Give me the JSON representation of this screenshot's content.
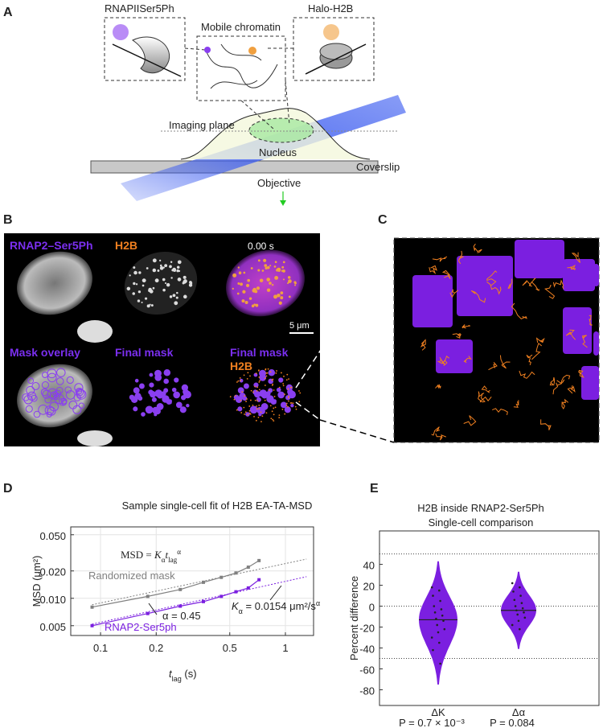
{
  "panel_labels": [
    "A",
    "B",
    "C",
    "D",
    "E"
  ],
  "diagram": {
    "left_inset": "RNAPIISer5Ph",
    "middle_inset": "Mobile chromatin",
    "right_inset": "Halo-H2B",
    "imaging_plane": "Imaging plane",
    "nucleus": "Nucleus",
    "coverslip": "Coverslip",
    "objective": "Objective"
  },
  "images": {
    "top_row": [
      "RNAP2–Ser5Ph",
      "H2B",
      "0.00 s"
    ],
    "scale_bar": "5 μm",
    "bottom_row": [
      "Mask overlay",
      "Final mask",
      "Final mask"
    ],
    "bottom_third_second_line": "H2B"
  },
  "chart_data": [
    {
      "type": "line",
      "title": "Sample single-cell fit of H2B EA-TA-MSD",
      "ylabel": "MSD (μm²)",
      "xlabel": {
        "t": "t",
        "sub": "lag",
        "rest": " (s)"
      },
      "xscale": "log",
      "yscale": "log",
      "grid": true,
      "xlim": [
        0.069,
        1.42
      ],
      "ylim": [
        0.0039,
        0.061
      ],
      "xticks": [
        0.1,
        0.2,
        0.5,
        1
      ],
      "yticks": [
        0.005,
        {
          "value": 0.01,
          "label": "0.010"
        },
        {
          "value": 0.02,
          "label": "0.020"
        },
        {
          "value": 0.05,
          "label": "0.050"
        }
      ],
      "series": [
        {
          "name": "Randomized mask",
          "color": "#808080",
          "x": [
            0.09,
            0.18,
            0.27,
            0.36,
            0.45,
            0.54,
            0.63,
            0.72
          ],
          "values": [
            0.008,
            0.0105,
            0.0125,
            0.015,
            0.017,
            0.019,
            0.022,
            0.026
          ]
        },
        {
          "name": "RNAP2-Ser5ph",
          "color": "#7b1fe0",
          "x": [
            0.09,
            0.18,
            0.27,
            0.36,
            0.45,
            0.54,
            0.63,
            0.72
          ],
          "values": [
            0.005,
            0.0068,
            0.0082,
            0.0092,
            0.0105,
            0.0118,
            0.013,
            0.016
          ]
        },
        {
          "color": "#808080",
          "dashed": true,
          "x": [
            0.09,
            1.3
          ],
          "values": [
            0.0085,
            0.027
          ]
        },
        {
          "color": "#7b1fe0",
          "dashed": true,
          "x": [
            0.09,
            1.3
          ],
          "values": [
            0.0052,
            0.0173
          ]
        }
      ],
      "formula": {
        "lhs": "MSD = ",
        "k": "K",
        "k_sub": "α",
        "t": "t",
        "t_sub": "lag",
        "t_sup": "α"
      },
      "alpha_label": "α = 0.45",
      "k_label": {
        "k": "K",
        "sub": "α",
        "rest": " = 0.0154 μm²/s",
        "sup": "α"
      }
    },
    {
      "type": "violin",
      "title": [
        "H2B inside RNAP2-Ser5Ph",
        "Single-cell comparison"
      ],
      "ylabel": "Percent difference",
      "categories": [
        "ΔK",
        "Δα"
      ],
      "p_labels": [
        "P = 0.7 × 10⁻³",
        "P = 0.084"
      ],
      "color": "#7b1fe0",
      "ylim": [
        -95,
        72
      ],
      "yticks": [
        -80,
        -60,
        -40,
        -20,
        0,
        20,
        40
      ],
      "hlines": [
        50,
        0,
        -50
      ],
      "median": [
        -13,
        -4
      ],
      "min": [
        -75,
        -41
      ],
      "max": [
        43,
        33
      ],
      "points": [
        [
          18,
          15,
          10,
          5,
          0,
          -3,
          -6,
          -9,
          -12,
          -14,
          -18,
          -22,
          -25,
          -30,
          -35,
          -42,
          -55
        ],
        [
          22,
          18,
          14,
          10,
          6,
          3,
          0,
          -2,
          -4,
          -6,
          -8,
          -11,
          -14,
          -18,
          -22
        ]
      ]
    }
  ]
}
